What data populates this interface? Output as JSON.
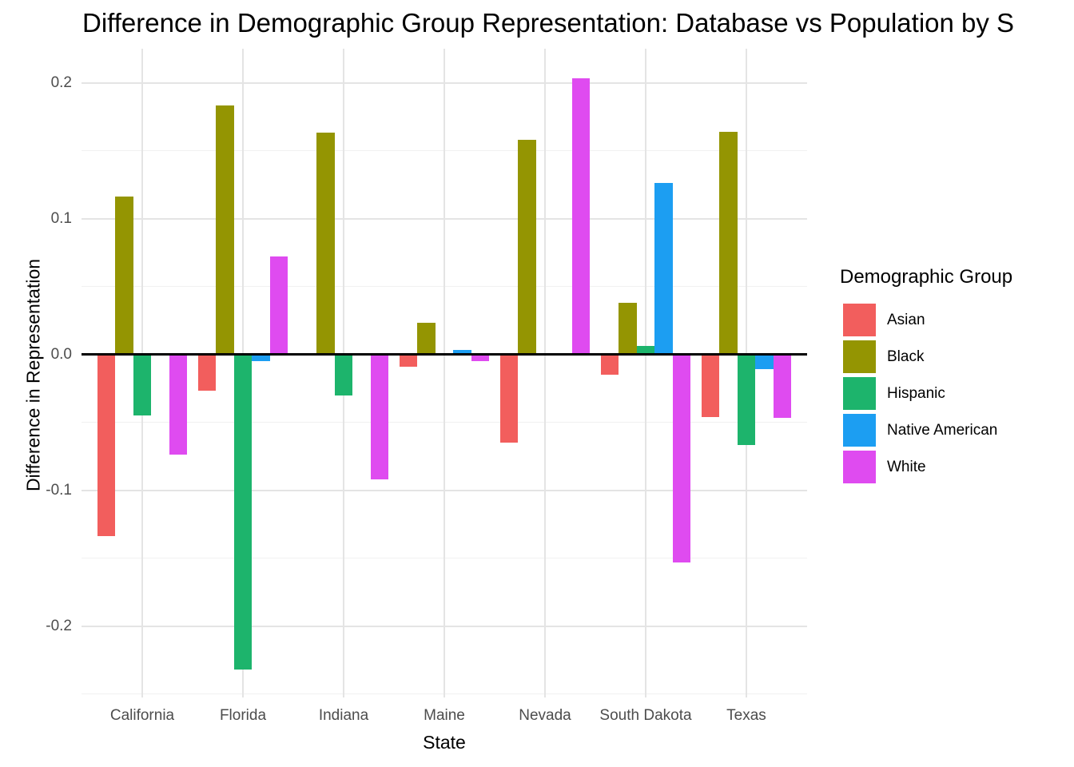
{
  "title": "Difference in Demographic Group Representation: Database vs Population by S",
  "chart_data": {
    "type": "bar",
    "subtype": "grouped-vertical",
    "title": "Difference in Demographic Group Representation: Database vs Population by S",
    "xlabel": "State",
    "ylabel": "Difference in Representation",
    "categories": [
      "California",
      "Florida",
      "Indiana",
      "Maine",
      "Nevada",
      "South Dakota",
      "Texas"
    ],
    "series": [
      {
        "name": "Asian",
        "color": "#F25E5D",
        "values": [
          -0.134,
          -0.027,
          0.0,
          -0.009,
          -0.065,
          -0.015,
          -0.046
        ]
      },
      {
        "name": "Black",
        "color": "#949502",
        "values": [
          0.116,
          0.183,
          0.163,
          0.023,
          0.158,
          0.038,
          0.164
        ]
      },
      {
        "name": "Hispanic",
        "color": "#1DB46C",
        "values": [
          -0.045,
          -0.232,
          -0.03,
          0.0,
          0.0,
          0.006,
          -0.067
        ]
      },
      {
        "name": "Native American",
        "color": "#1C9EF2",
        "values": [
          0.0,
          -0.005,
          0.0,
          0.003,
          0.0,
          0.126,
          -0.011
        ]
      },
      {
        "name": "White",
        "color": "#DF4BF0",
        "values": [
          -0.074,
          0.072,
          -0.092,
          -0.005,
          0.203,
          -0.153,
          -0.047
        ]
      }
    ],
    "ylim": [
      -0.254,
      0.225
    ],
    "yticks": [
      0.2,
      0.1,
      0.0,
      -0.1,
      -0.2
    ],
    "ytick_labels": [
      "0.2",
      "0.1",
      "0.0",
      "-0.1",
      "-0.2"
    ],
    "minor_gridlines": [
      0.15,
      0.05,
      -0.05,
      -0.15,
      -0.25
    ],
    "grid": true,
    "zero_line": true,
    "legend": {
      "title": "Demographic Group",
      "position": "right",
      "entries": [
        "Asian",
        "Black",
        "Hispanic",
        "Native American",
        "White"
      ]
    },
    "colors": {
      "background": "#ffffff",
      "major_grid": "#e4e4e4",
      "minor_grid": "#f1f1f1",
      "axis_text": "#4d4d4d",
      "title_text": "#000000",
      "zero_line": "#000000"
    }
  }
}
